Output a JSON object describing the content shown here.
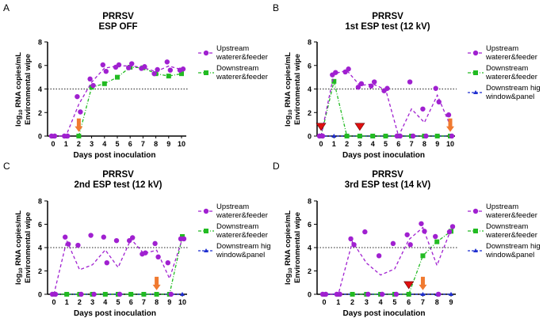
{
  "colors": {
    "upstream": "#a020d0",
    "downstream": "#22bb22",
    "high": "#1f2fd0",
    "threshold": "#222222",
    "arrow": "#f07a30",
    "triangle": "#e01010"
  },
  "chart_data": [
    {
      "type": "scatter",
      "panel_label": "A",
      "title": [
        "PRRSV",
        "ESP OFF"
      ],
      "xlabel": "Days post inoculation",
      "ylabel": [
        "log10 RNA copies/mL",
        "Environmental wipe"
      ],
      "ylim": [
        0,
        8
      ],
      "yticks": [
        0,
        2,
        4,
        6,
        8
      ],
      "xticks": [
        0,
        1,
        2,
        3,
        4,
        5,
        6,
        7,
        8,
        9,
        10
      ],
      "threshold": 4,
      "series": [
        {
          "name": "Upstream waterer&feeder",
          "legend": [
            "Upstream",
            "waterer&feeder"
          ],
          "marker": "circle",
          "color": "upstream",
          "line": "mean",
          "days": [
            0,
            1,
            2,
            3,
            4,
            5,
            6,
            7,
            8,
            9,
            10
          ],
          "points": [
            [
              0,
              0
            ],
            [
              0,
              0
            ],
            [
              3.35,
              2.05
            ],
            [
              4.85,
              4.3
            ],
            [
              6.05,
              5.5
            ],
            [
              5.85,
              6.05
            ],
            [
              5.8,
              6.15
            ],
            [
              5.75,
              5.9
            ],
            [
              5.3,
              5.65
            ],
            [
              6.3,
              5.6
            ],
            [
              5.6,
              5.7
            ]
          ]
        },
        {
          "name": "Downstream waterer&feeder",
          "legend": [
            "Downstream",
            "waterer&feeder"
          ],
          "marker": "square",
          "color": "downstream",
          "days": [
            2,
            3,
            4,
            5,
            6,
            7,
            8,
            9,
            10
          ],
          "values": [
            0,
            4.15,
            4.45,
            5.0,
            5.85,
            5.8,
            5.3,
            5.1,
            5.3
          ]
        }
      ],
      "arrows": [
        2
      ],
      "triangles": []
    },
    {
      "type": "scatter",
      "panel_label": "B",
      "title": [
        "PRRSV",
        "1st ESP test (12 kV)"
      ],
      "xlabel": "Days post inoculation",
      "ylabel": [
        "log10 RNA copies/mL",
        "Environmental wipe"
      ],
      "ylim": [
        0,
        8
      ],
      "yticks": [
        0,
        2,
        4,
        6,
        8
      ],
      "xticks": [
        0,
        1,
        2,
        3,
        4,
        5,
        6,
        7,
        8,
        9,
        10
      ],
      "threshold": 4,
      "series": [
        {
          "name": "Upstream waterer&feeder",
          "legend": [
            "Upstream",
            "waterer&feeder"
          ],
          "marker": "circle",
          "color": "upstream",
          "line": "mean",
          "days": [
            0,
            1,
            2,
            3,
            4,
            5,
            6,
            7,
            8,
            9,
            10
          ],
          "points": [
            [
              0,
              0
            ],
            [
              5.2,
              5.4
            ],
            [
              5.45,
              5.7
            ],
            [
              4.15,
              4.45
            ],
            [
              4.25,
              4.6
            ],
            [
              3.85,
              4.05
            ],
            [
              0,
              0
            ],
            [
              4.6,
              0
            ],
            [
              2.3,
              0
            ],
            [
              4.05,
              2.9
            ],
            [
              1.8,
              0
            ]
          ]
        },
        {
          "name": "Downstream waterer&feeder",
          "legend": [
            "Downstream",
            "waterer&feeder"
          ],
          "marker": "square",
          "color": "downstream",
          "days": [
            0,
            1,
            2,
            3,
            4,
            5,
            6,
            7,
            8,
            9,
            10
          ],
          "values": [
            0,
            4.65,
            0,
            0,
            0,
            0,
            0,
            0,
            0,
            0,
            0
          ]
        },
        {
          "name": "Downstream high window&panel",
          "legend": [
            "Downstream high",
            "window&panel"
          ],
          "marker": "triangle",
          "color": "high",
          "days": [
            0,
            1,
            2,
            3,
            4,
            5,
            6,
            7,
            8,
            9,
            10
          ],
          "values": [
            0,
            0,
            0,
            0,
            0,
            0,
            0,
            0,
            0,
            0,
            0
          ]
        }
      ],
      "arrows": [
        10
      ],
      "triangles": [
        0,
        3
      ]
    },
    {
      "type": "scatter",
      "panel_label": "C",
      "title": [
        "PRRSV",
        "2nd ESP test (12 kV)"
      ],
      "xlabel": "Days post inoculation",
      "ylabel": [
        "log10 RNA copies/mL",
        "Environmental wipe"
      ],
      "ylim": [
        0,
        8
      ],
      "yticks": [
        0,
        2,
        4,
        6,
        8
      ],
      "xticks": [
        0,
        1,
        2,
        3,
        4,
        5,
        6,
        7,
        8,
        9,
        10
      ],
      "threshold": 4,
      "series": [
        {
          "name": "Upstream waterer&feeder",
          "legend": [
            "Upstream",
            "waterer&feeder"
          ],
          "marker": "circle",
          "color": "upstream",
          "line": "mean",
          "days": [
            0,
            1,
            2,
            3,
            4,
            5,
            6,
            7,
            8,
            9,
            10
          ],
          "points": [
            [
              0,
              0
            ],
            [
              4.9,
              4.3
            ],
            [
              4.2,
              0
            ],
            [
              5.05,
              0
            ],
            [
              4.9,
              2.7
            ],
            [
              4.6,
              0
            ],
            [
              4.6,
              4.85
            ],
            [
              3.45,
              3.55
            ],
            [
              4.35,
              3.2
            ],
            [
              2.7,
              0
            ],
            [
              4.75,
              4.75
            ]
          ]
        },
        {
          "name": "Downstream waterer&feeder",
          "legend": [
            "Downstream",
            "waterer&feeder"
          ],
          "marker": "square",
          "color": "downstream",
          "days": [
            0,
            1,
            2,
            3,
            4,
            5,
            6,
            7,
            8,
            9,
            10
          ],
          "values": [
            0,
            0,
            0,
            0,
            0,
            0,
            0,
            0,
            0,
            0,
            4.95
          ]
        },
        {
          "name": "Downstream high window&panel",
          "legend": [
            "Downstream high",
            "window&panel"
          ],
          "marker": "triangle",
          "color": "high",
          "days": [
            0,
            1,
            2,
            3,
            4,
            5,
            6,
            7,
            8,
            9,
            10
          ],
          "values": [
            0,
            0,
            0,
            0,
            0,
            0,
            0,
            0,
            0,
            0,
            0
          ]
        }
      ],
      "arrows": [
        8
      ],
      "triangles": []
    },
    {
      "type": "scatter",
      "panel_label": "D",
      "title": [
        "PRRSV",
        "3rd ESP test (14 kV)"
      ],
      "xlabel": "Days post inoculation",
      "ylabel": [
        "log10 RNA copies/mL",
        "Environmental wipe"
      ],
      "ylim": [
        0,
        8
      ],
      "yticks": [
        0,
        2,
        4,
        6,
        8
      ],
      "xticks": [
        0,
        1,
        2,
        3,
        4,
        5,
        6,
        7,
        8,
        9
      ],
      "threshold": 4,
      "series": [
        {
          "name": "Upstream waterer&feeder",
          "legend": [
            "Upstream",
            "waterer&feeder"
          ],
          "marker": "circle",
          "color": "upstream",
          "line": "mean",
          "days": [
            0,
            1,
            2,
            3,
            4,
            5,
            6,
            7,
            8,
            9
          ],
          "points": [
            [
              0,
              0
            ],
            [
              0,
              0
            ],
            [
              4.75,
              4.25
            ],
            [
              5.35,
              0
            ],
            [
              3.3,
              0
            ],
            [
              4.35,
              0
            ],
            [
              5.1,
              4.25
            ],
            [
              6.05,
              5.4
            ],
            [
              4.95,
              0
            ],
            [
              5.35,
              5.8
            ]
          ]
        },
        {
          "name": "Downstream waterer&feeder",
          "legend": [
            "Downstream",
            "waterer&feeder"
          ],
          "marker": "square",
          "color": "downstream",
          "days": [
            2,
            3,
            4,
            5,
            6,
            7,
            8,
            9
          ],
          "values": [
            0,
            0,
            0,
            0,
            0,
            3.3,
            4.5,
            5.4
          ]
        },
        {
          "name": "Downstream high window&panel",
          "legend": [
            "Downstream high",
            "window&panel"
          ],
          "marker": "triangle",
          "color": "high",
          "days": [
            0,
            1,
            2,
            3,
            4,
            5,
            6,
            7,
            8,
            9
          ],
          "values": [
            0,
            0,
            0,
            0,
            0,
            0,
            0,
            0,
            0,
            0
          ]
        }
      ],
      "arrows": [
        7
      ],
      "triangles": [
        6
      ]
    }
  ]
}
